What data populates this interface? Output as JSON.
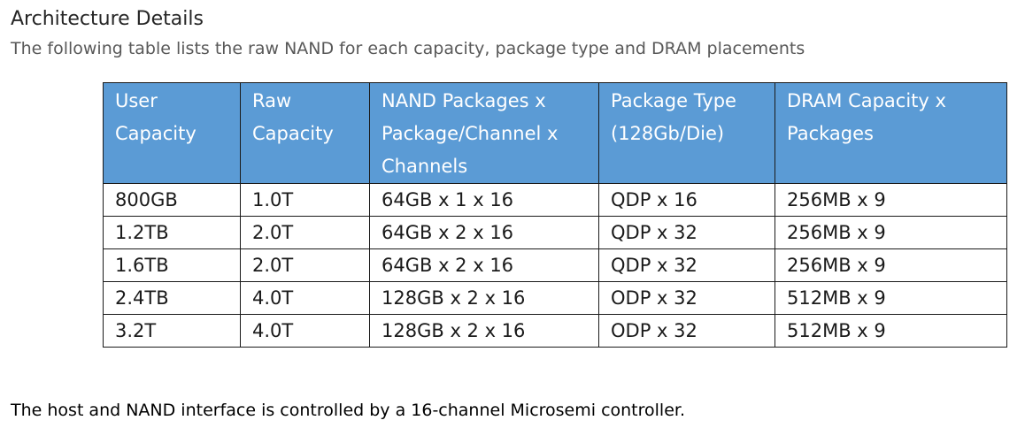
{
  "heading": "Architecture Details",
  "subheading": "The following table lists the raw NAND for each capacity, package type and DRAM placements",
  "table": {
    "headers": [
      [
        "User",
        "Capacity"
      ],
      [
        "Raw",
        "Capacity"
      ],
      [
        "NAND Packages x",
        "Package/Channel x",
        "Channels"
      ],
      [
        "Package Type",
        "(128Gb/Die)"
      ],
      [
        "DRAM Capacity x",
        "Packages"
      ]
    ],
    "rows": [
      [
        "800GB",
        "1.0T",
        "64GB x 1 x 16",
        "QDP x 16",
        "256MB x 9"
      ],
      [
        "1.2TB",
        "2.0T",
        "64GB x 2 x 16",
        "QDP x 32",
        "256MB x 9"
      ],
      [
        "1.6TB",
        "2.0T",
        "64GB x 2 x 16",
        "QDP x 32",
        "256MB x 9"
      ],
      [
        "2.4TB",
        "4.0T",
        "128GB x 2 x 16",
        "ODP x 32",
        "512MB x 9"
      ],
      [
        "3.2T",
        "4.0T",
        "128GB x 2 x 16",
        "ODP x 32",
        "512MB x 9"
      ]
    ]
  },
  "footer": "The host and NAND interface is controlled by a 16-channel Microsemi controller.",
  "colors": {
    "header_bg": "#5b9bd5",
    "header_text": "#ffffff",
    "border": "#1a1a1a"
  }
}
